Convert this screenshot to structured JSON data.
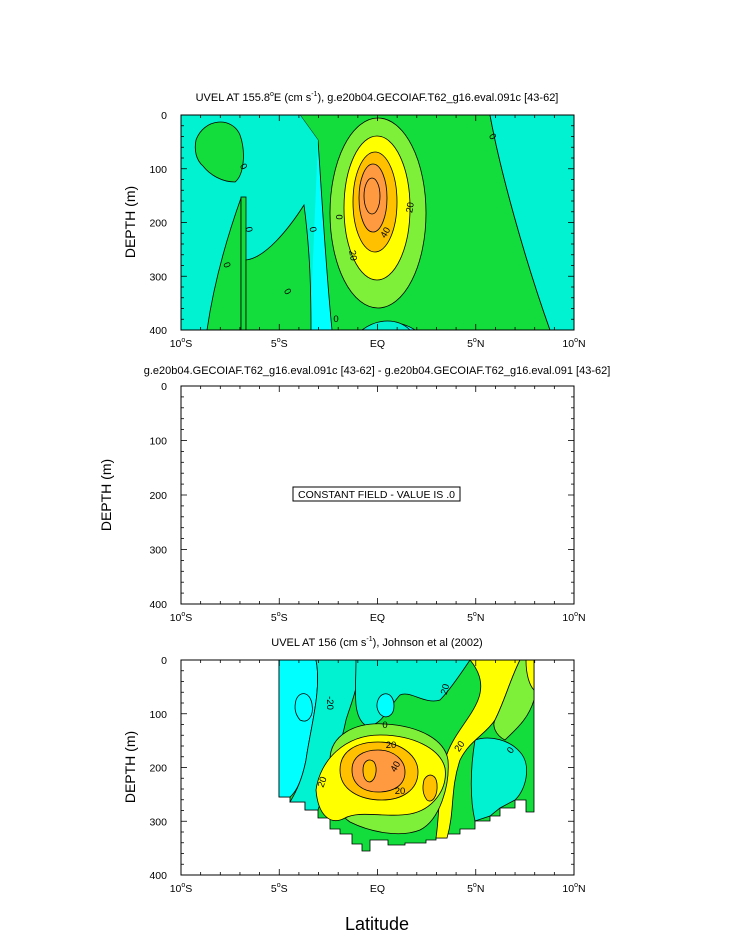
{
  "figure": {
    "xlabel": "Latitude"
  },
  "x_ticks": [
    "10",
    "S",
    "5",
    "S",
    "EQ",
    "5",
    "N",
    "10",
    "N"
  ],
  "y_ticks": [
    "0",
    "100",
    "200",
    "300",
    "400"
  ],
  "colors": {
    "cyan": "#00ffff",
    "aqua": "#00f2d0",
    "green": "#12dd3c",
    "lightgreen": "#7ef03a",
    "yellow": "#ffff00",
    "lightorange": "#ffc000",
    "orange": "#ff9a40",
    "line": "#000000"
  },
  "panels": [
    {
      "title": "UVEL AT 155.8°E (cm s-1), g.e20b04.GECOIAF.T62_g16.eval.091c [43-62]",
      "title_parts": {
        "pre": "UVEL AT 155.8",
        "deg": "o",
        "mid": "E (cm s",
        "sup": "-1",
        "post": "), g.e20b04.GECOIAF.T62_g16.eval.091c [43-62]"
      },
      "ylabel": "DEPTH (m)",
      "contour_labels": [
        "0",
        "0",
        "0",
        "0",
        "0",
        "0",
        "0",
        "0",
        "20",
        "20",
        "40"
      ]
    },
    {
      "title": "g.e20b04.GECOIAF.T62_g16.eval.091c [43-62] - g.e20b04.GECOIAF.T62_g16.eval.091 [43-62]",
      "ylabel": "DEPTH (m)",
      "note": "CONSTANT FIELD - VALUE IS .0"
    },
    {
      "title": "UVEL AT 156 (cm s-1), Johnson et al (2002)",
      "title_parts": {
        "pre": "UVEL AT 156 (cm s",
        "sup": "-1",
        "post": "), Johnson et al (2002)"
      },
      "ylabel": "DEPTH (m)",
      "contour_labels": [
        "-20",
        "20",
        "20",
        "20",
        "20",
        "40",
        "20",
        "0",
        "0"
      ]
    }
  ],
  "chart_data": [
    {
      "type": "heatmap",
      "title": "UVEL AT 155.8°E (cm s-1), g.e20b04.GECOIAF.T62_g16.eval.091c [43-62]",
      "xlabel": "Latitude",
      "ylabel": "DEPTH (m)",
      "xlim": [
        -10,
        10
      ],
      "ylim": [
        400,
        0
      ],
      "contour_levels": [
        -20,
        -10,
        0,
        10,
        20,
        30,
        40,
        50
      ],
      "core": {
        "lat": 0,
        "depth_m": 180,
        "max_cm_s": 55
      }
    },
    {
      "type": "heatmap",
      "title": "g.e20b04.GECOIAF.T62_g16.eval.091c [43-62] - g.e20b04.GECOIAF.T62_g16.eval.091 [43-62]",
      "xlabel": "Latitude",
      "ylabel": "DEPTH (m)",
      "xlim": [
        -10,
        10
      ],
      "ylim": [
        400,
        0
      ],
      "constant_value": 0
    },
    {
      "type": "heatmap",
      "title": "UVEL AT 156 (cm s-1), Johnson et al (2002)",
      "xlabel": "Latitude",
      "ylabel": "DEPTH (m)",
      "xlim": [
        -10,
        10
      ],
      "ylim": [
        400,
        0
      ],
      "data_lat_range": [
        -5,
        8
      ],
      "contour_levels": [
        -20,
        -10,
        0,
        10,
        20,
        30,
        40,
        50
      ],
      "core": {
        "lat": -0.3,
        "depth_m": 200,
        "max_cm_s": 50
      }
    }
  ]
}
